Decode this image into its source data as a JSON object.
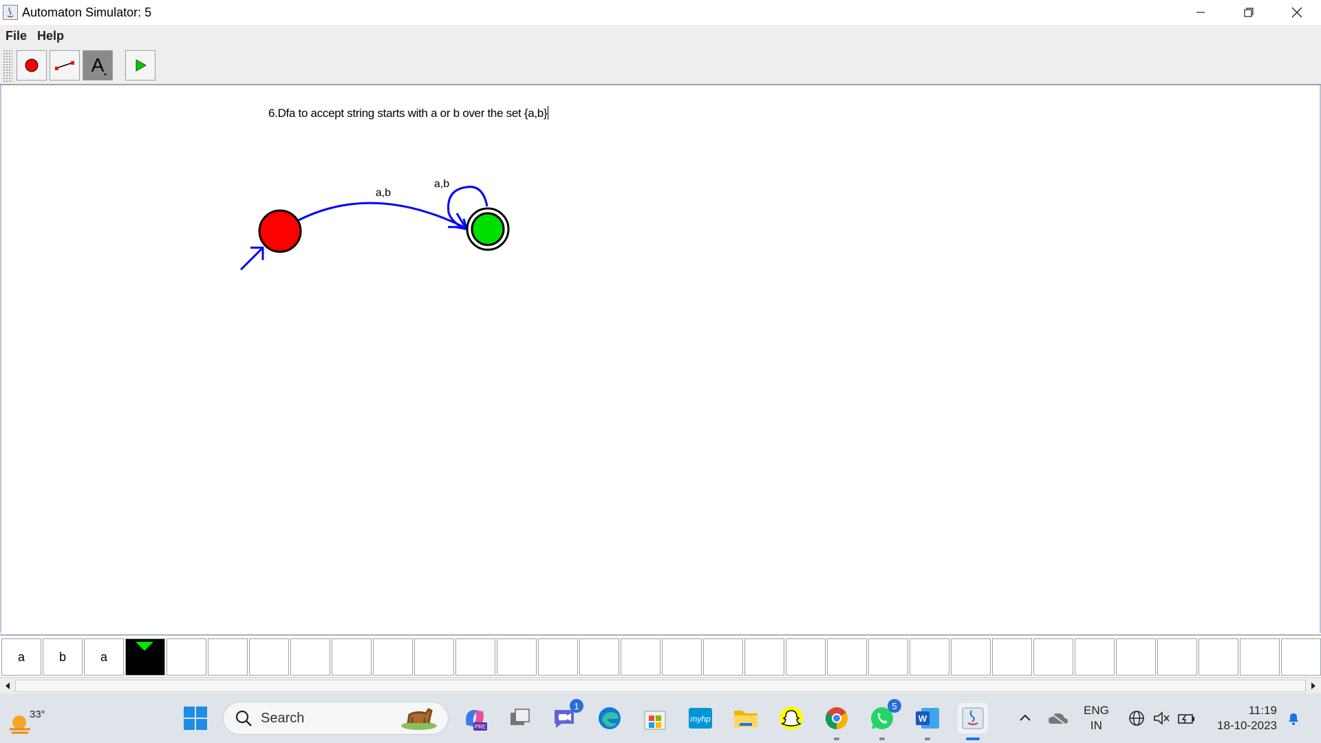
{
  "window": {
    "title": "Automaton Simulator: 5"
  },
  "menu": {
    "items": [
      "File",
      "Help"
    ]
  },
  "toolbar": {
    "tools": [
      {
        "name": "state-tool",
        "icon": "red-circle-icon"
      },
      {
        "name": "transition-tool",
        "icon": "transition-line-icon"
      },
      {
        "name": "text-tool",
        "icon": "text-a-icon",
        "selected": true
      },
      {
        "name": "run-tool",
        "icon": "play-icon"
      }
    ]
  },
  "canvas": {
    "caption": "6.Dfa to accept string starts with a or b over the set {a,b}",
    "states": [
      {
        "id": "q0",
        "initial": true,
        "accepting": false,
        "color": "#ff0000"
      },
      {
        "id": "q1",
        "initial": false,
        "accepting": true,
        "color": "#00e000"
      }
    ],
    "transitions": [
      {
        "from": "q0",
        "to": "q1",
        "label": "a,b"
      },
      {
        "from": "q1",
        "to": "q1",
        "label": "a,b"
      }
    ],
    "transition_color": "#0000ff"
  },
  "tape": {
    "cells": [
      "a",
      "b",
      "a",
      "",
      "",
      "",
      "",
      "",
      "",
      "",
      "",
      "",
      "",
      "",
      "",
      "",
      "",
      "",
      "",
      "",
      "",
      "",
      "",
      "",
      "",
      "",
      "",
      "",
      "",
      "",
      "",
      ""
    ],
    "head_index": 3
  },
  "taskbar": {
    "weather_temp": "33°",
    "search_placeholder": "Search",
    "apps": [
      {
        "name": "copilot",
        "icon": "copilot-icon"
      },
      {
        "name": "task-view",
        "icon": "task-view-icon"
      },
      {
        "name": "teams-chat",
        "icon": "chat-icon",
        "badge": "1"
      },
      {
        "name": "edge",
        "icon": "edge-icon"
      },
      {
        "name": "store",
        "icon": "store-icon"
      },
      {
        "name": "myhp",
        "icon": "myhp-icon"
      },
      {
        "name": "file-explorer",
        "icon": "folder-icon"
      },
      {
        "name": "snapchat",
        "icon": "snapchat-icon"
      },
      {
        "name": "chrome",
        "icon": "chrome-icon"
      },
      {
        "name": "whatsapp",
        "icon": "whatsapp-icon",
        "badge": "5"
      },
      {
        "name": "word",
        "icon": "word-icon"
      },
      {
        "name": "java",
        "icon": "java-icon",
        "active": true
      }
    ],
    "lang_top": "ENG",
    "lang_bottom": "IN",
    "time": "11:19",
    "date": "18-10-2023"
  }
}
